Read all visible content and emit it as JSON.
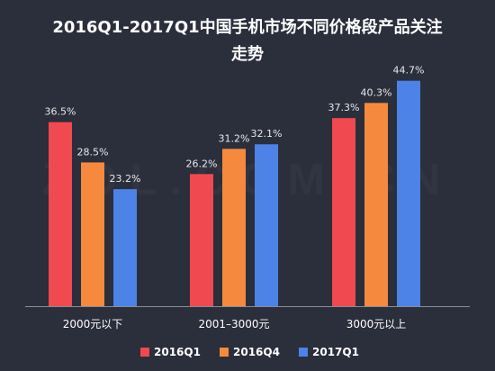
{
  "watermark": "ZOL.COM.CN",
  "chart_data": {
    "type": "bar",
    "title": "2016Q1-2017Q1中国手机市场不同价格段产品关注走势",
    "title_lines": [
      "2016Q1-2017Q1中国手机市场不同价格段产品关注",
      "走势"
    ],
    "categories": [
      "2000元以下",
      "2001–3000元",
      "3000元以上"
    ],
    "series": [
      {
        "name": "2016Q1",
        "color": "#f0494f",
        "values": [
          36.5,
          26.2,
          37.3
        ]
      },
      {
        "name": "2016Q4",
        "color": "#f58a3e",
        "values": [
          28.5,
          31.2,
          40.3
        ]
      },
      {
        "name": "2017Q1",
        "color": "#4d82e6",
        "values": [
          23.2,
          32.1,
          44.7
        ]
      }
    ],
    "value_suffix": "%",
    "ylim": [
      0,
      50
    ],
    "grid": false,
    "legend_position": "bottom"
  }
}
